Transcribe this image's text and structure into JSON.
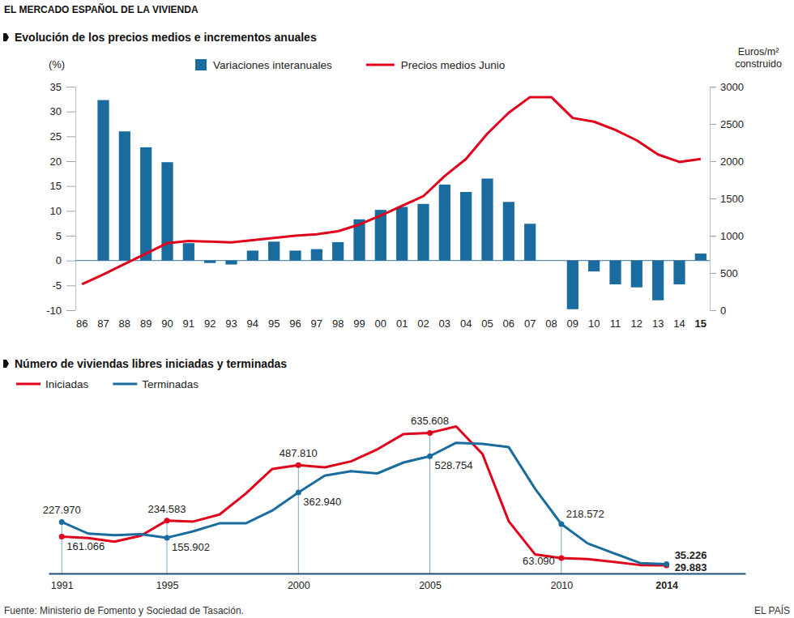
{
  "header": "EL MERCADO ESPAÑOL DE LA VIVIENDA",
  "source": "Fuente: Ministerio de Fomento y Sociedad de Tasación.",
  "credit": "EL PAÍS",
  "chart_data": [
    {
      "type": "bar",
      "title": "Evolución de los precios medios e incrementos anuales",
      "categories": [
        "86",
        "87",
        "88",
        "89",
        "90",
        "91",
        "92",
        "93",
        "94",
        "95",
        "96",
        "97",
        "98",
        "99",
        "00",
        "01",
        "02",
        "03",
        "04",
        "05",
        "06",
        "07",
        "08",
        "09",
        "10",
        "11",
        "12",
        "13",
        "14",
        "15"
      ],
      "series": [
        {
          "name": "Variaciones interanuales",
          "type": "bar",
          "color": "#1b6c9e",
          "values": [
            null,
            32.3,
            26,
            22.8,
            19.8,
            3.5,
            -0.5,
            -0.8,
            2,
            3.8,
            2,
            2.3,
            3.7,
            8.3,
            10.2,
            10.8,
            11.4,
            15.3,
            13.8,
            16.5,
            11.8,
            7.4,
            null,
            -9.8,
            -2.2,
            -4.8,
            -5.4,
            -8,
            -4.8,
            1.4
          ]
        },
        {
          "name": "Precios medios Junio",
          "type": "line",
          "axis": "y2",
          "color": "#e0001b",
          "values": [
            350,
            480,
            620,
            760,
            900,
            930,
            920,
            910,
            940,
            970,
            1000,
            1020,
            1060,
            1150,
            1270,
            1400,
            1530,
            1800,
            2030,
            2370,
            2650,
            2860,
            2860,
            2580,
            2530,
            2420,
            2280,
            2090,
            1990,
            2030
          ]
        }
      ],
      "ylabel": "(%)",
      "y2label": [
        "Euros/m²",
        "construido"
      ],
      "ylim": [
        -10,
        35
      ],
      "yticks": [
        -10,
        -5,
        0,
        5,
        10,
        15,
        20,
        25,
        30,
        35
      ],
      "y2lim": [
        0,
        3000
      ],
      "y2ticks": [
        0,
        500,
        1000,
        1500,
        2000,
        2500,
        3000
      ],
      "legend": "top"
    },
    {
      "type": "line",
      "title": "Número de viviendas libres iniciadas y terminadas",
      "x": [
        1991,
        1992,
        1993,
        1994,
        1995,
        1996,
        1997,
        1998,
        1999,
        2000,
        2001,
        2002,
        2003,
        2004,
        2005,
        2006,
        2007,
        2008,
        2009,
        2010,
        2011,
        2012,
        2013,
        2014
      ],
      "series": [
        {
          "name": "Iniciadas",
          "color": "#e0001b",
          "values": [
            161066,
            155000,
            138000,
            165000,
            234583,
            230000,
            262000,
            358000,
            470000,
            487810,
            478000,
            505000,
            560000,
            630000,
            635608,
            665000,
            539000,
            231000,
            80000,
            63090,
            58000,
            45000,
            31000,
            29883
          ],
          "value_labels": [
            "161.066",
            null,
            null,
            null,
            "234.583",
            null,
            null,
            null,
            null,
            "487.810",
            null,
            null,
            null,
            null,
            "635.608",
            null,
            null,
            null,
            null,
            "63.090",
            null,
            null,
            null,
            "29.883"
          ]
        },
        {
          "name": "Terminadas",
          "color": "#1b6c9e",
          "values": [
            227970,
            175000,
            168000,
            172000,
            155902,
            185000,
            222000,
            222000,
            280000,
            362940,
            440000,
            460000,
            450000,
            500000,
            528754,
            590000,
            585000,
            570000,
            380000,
            218572,
            130000,
            85000,
            40000,
            35226
          ],
          "value_labels": [
            "227.970",
            null,
            null,
            null,
            "155.902",
            null,
            null,
            null,
            null,
            "362.940",
            null,
            null,
            null,
            null,
            "528.754",
            null,
            null,
            null,
            null,
            "218.572",
            null,
            null,
            null,
            "35.226"
          ]
        }
      ],
      "xlim": [
        1990.5,
        2017
      ],
      "xticks": [
        1991,
        1995,
        2000,
        2005,
        2010,
        2014
      ],
      "ylim": [
        0,
        700000
      ],
      "tick_labels": "x",
      "legend": "top left"
    }
  ]
}
